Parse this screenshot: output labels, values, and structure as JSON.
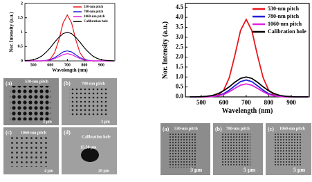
{
  "chart_data": [
    {
      "type": "line",
      "xlabel": "Wavelength (nm)",
      "ylabel": "Nor. Intensity (a.u.)",
      "x": [
        450,
        475,
        500,
        525,
        550,
        575,
        600,
        625,
        650,
        675,
        700,
        725,
        750,
        775,
        800,
        825,
        850,
        875,
        900,
        925,
        950,
        975
      ],
      "xlim": [
        450,
        980
      ],
      "xticks": [
        500,
        600,
        700,
        800,
        900
      ],
      "ylim": [
        0,
        2
      ],
      "yticks": [
        0,
        0.5,
        1,
        1.5,
        2
      ],
      "legend": "top-right",
      "series": [
        {
          "name": "530-nm pitch",
          "color": "#e8141b",
          "values": [
            0,
            0,
            0,
            0,
            0,
            0.01,
            0.07,
            0.28,
            0.73,
            1.32,
            1.6,
            1.32,
            0.73,
            0.28,
            0.07,
            0.01,
            0,
            0,
            0,
            0,
            0,
            0
          ]
        },
        {
          "name": "780-nm pitch",
          "color": "#1f1fd6",
          "values": [
            0,
            0,
            0,
            0,
            0,
            0.02,
            0.05,
            0.11,
            0.21,
            0.31,
            0.35,
            0.31,
            0.21,
            0.11,
            0.05,
            0.02,
            0,
            0,
            0,
            0,
            0,
            0
          ]
        },
        {
          "name": "1060-nm pitch",
          "color": "#e020e0",
          "values": [
            0,
            0,
            0,
            0,
            0,
            0.01,
            0.03,
            0.08,
            0.15,
            0.22,
            0.25,
            0.22,
            0.15,
            0.08,
            0.03,
            0.01,
            0,
            0,
            0,
            0,
            0,
            0
          ]
        },
        {
          "name": "Calibration hole",
          "color": "#000000",
          "values": [
            0.01,
            0.02,
            0.04,
            0.09,
            0.17,
            0.3,
            0.46,
            0.65,
            0.82,
            0.95,
            1,
            0.95,
            0.82,
            0.65,
            0.46,
            0.3,
            0.17,
            0.09,
            0.04,
            0.02,
            0.01,
            0
          ]
        }
      ]
    },
    {
      "type": "line",
      "xlabel": "Wavelength (nm)",
      "ylabel": "Nor. Intensity (a.u.)",
      "x": [
        450,
        475,
        500,
        525,
        550,
        575,
        600,
        625,
        650,
        675,
        700,
        725,
        750,
        775,
        800,
        825,
        850,
        875,
        900,
        925,
        950,
        975
      ],
      "xlim": [
        430,
        980
      ],
      "xticks": [
        500,
        600,
        700,
        800,
        900
      ],
      "ylim": [
        0,
        4.7
      ],
      "yticks": [
        {
          "value": 0,
          "label": "0.0"
        },
        0.5,
        {
          "value": 1,
          "label": "1.0"
        },
        1.5,
        {
          "value": 2,
          "label": "2.0"
        },
        2.5,
        {
          "value": 3,
          "label": "3.0"
        },
        3.5,
        {
          "value": 4,
          "label": "4.0"
        },
        4.5
      ],
      "legend": "top-right",
      "series": [
        {
          "name": "530-nm pitch",
          "color": "#e8141b",
          "values": [
            0,
            0,
            0,
            0,
            0.02,
            0.08,
            0.33,
            0.97,
            2.1,
            3.34,
            3.9,
            3.34,
            2.1,
            0.97,
            0.33,
            0.08,
            0.02,
            0,
            0,
            0,
            0,
            0
          ]
        },
        {
          "name": "780-nm pitch",
          "color": "#1f1fd6",
          "values": [
            0,
            0,
            0,
            0.01,
            0.02,
            0.06,
            0.16,
            0.34,
            0.56,
            0.77,
            0.85,
            0.77,
            0.56,
            0.34,
            0.16,
            0.06,
            0.02,
            0.01,
            0,
            0,
            0,
            0
          ]
        },
        {
          "name": "1060-nm pitch",
          "color": "#e020e0",
          "values": [
            0,
            0,
            0,
            0,
            0.02,
            0.05,
            0.12,
            0.26,
            0.43,
            0.59,
            0.65,
            0.59,
            0.43,
            0.26,
            0.12,
            0.05,
            0.02,
            0,
            0,
            0,
            0,
            0
          ]
        },
        {
          "name": "Calibration hole",
          "color": "#000000",
          "values": [
            0,
            0,
            0.01,
            0.03,
            0.07,
            0.16,
            0.31,
            0.51,
            0.74,
            0.93,
            1,
            0.93,
            0.74,
            0.51,
            0.31,
            0.16,
            0.07,
            0.03,
            0.01,
            0,
            0,
            0
          ]
        }
      ]
    }
  ],
  "panels": [
    {
      "label": "(a)",
      "title": "530-nm pitch",
      "scale": "3 μm"
    },
    {
      "label": "(b)",
      "title": "780-nm pitch",
      "scale": "3 μm"
    },
    {
      "label": "(c)",
      "title": "1060-nm pitch",
      "scale": "4 μm"
    },
    {
      "label": "(d)",
      "title": "Calibration hole",
      "scale": "20 μm",
      "note": "15.58 μm"
    },
    {
      "label": "(a)",
      "title": "530-nm pitch",
      "scale": "3 μm"
    },
    {
      "label": "(b)",
      "title": "780-nm pitch",
      "scale": "5 μm"
    },
    {
      "label": "(c)",
      "title": "1060-nm pitch",
      "scale": "5 μm"
    }
  ]
}
